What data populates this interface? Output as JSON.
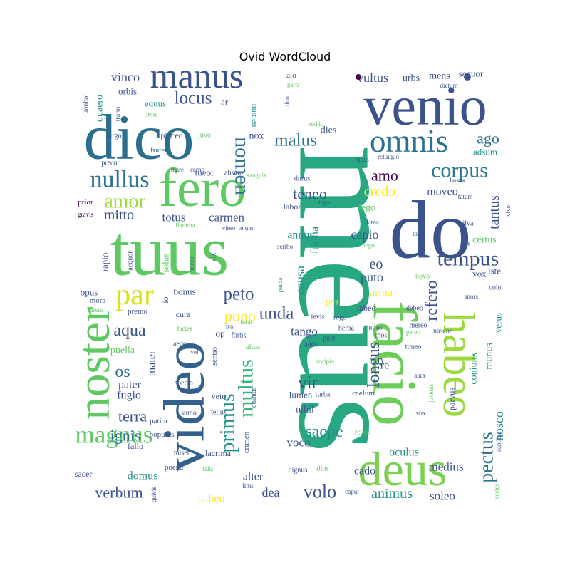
{
  "chart_data": {
    "type": "wordcloud",
    "title": "Ovid WordCloud",
    "colormap": [
      "#440154",
      "#3b528b",
      "#21918c",
      "#5ec962",
      "#fde725"
    ],
    "words": [
      {
        "text": "meus",
        "color": "#27a882",
        "rotate": 90
      },
      {
        "text": "venio",
        "color": "#3b528b",
        "rotate": 0
      },
      {
        "text": "dico",
        "color": "#2c6e8e",
        "rotate": 0
      },
      {
        "text": "tuus",
        "color": "#5ec962",
        "rotate": 0
      },
      {
        "text": "do",
        "color": "#3b528b",
        "rotate": 0
      },
      {
        "text": "facio",
        "color": "#6cce59",
        "rotate": 90
      },
      {
        "text": "video",
        "color": "#34608d",
        "rotate": 270
      },
      {
        "text": "fero",
        "color": "#5ec962",
        "rotate": 0
      },
      {
        "text": "habeo",
        "color": "#9bd93c",
        "rotate": 90
      },
      {
        "text": "noster",
        "color": "#5ec962",
        "rotate": 270
      },
      {
        "text": "deus",
        "color": "#7ad151",
        "rotate": 0
      },
      {
        "text": "manus",
        "color": "#3b528b",
        "rotate": 0
      },
      {
        "text": "omnis",
        "color": "#2c728e",
        "rotate": 0
      },
      {
        "text": "magnus",
        "color": "#5ec962",
        "rotate": 0
      },
      {
        "text": "par",
        "color": "#d8e219",
        "rotate": 0
      },
      {
        "text": "nullus",
        "color": "#2c728e",
        "rotate": 0
      },
      {
        "text": "corpus",
        "color": "#2a788e",
        "rotate": 0
      },
      {
        "text": "amor",
        "color": "#a0da39",
        "rotate": 0
      },
      {
        "text": "locus",
        "color": "#3b528b",
        "rotate": 0
      },
      {
        "text": "multus",
        "color": "#35b779",
        "rotate": 270
      },
      {
        "text": "primus",
        "color": "#21918c",
        "rotate": 270
      },
      {
        "text": "nomen",
        "color": "#2c728e",
        "rotate": 90
      },
      {
        "text": "malus",
        "color": "#2c728e",
        "rotate": 0
      },
      {
        "text": "tempus",
        "color": "#3b528b",
        "rotate": 0
      },
      {
        "text": "pectus",
        "color": "#2c728e",
        "rotate": 270
      },
      {
        "text": "volo",
        "color": "#3b528b",
        "rotate": 0
      },
      {
        "text": "verbum",
        "color": "#3b528b",
        "rotate": 0
      },
      {
        "text": "terra",
        "color": "#3b528b",
        "rotate": 0
      },
      {
        "text": "peto",
        "color": "#3b528b",
        "rotate": 0
      },
      {
        "text": "unda",
        "color": "#3b528b",
        "rotate": 0
      },
      {
        "text": "vir",
        "color": "#3b528b",
        "rotate": 0
      },
      {
        "text": "longus",
        "color": "#3b528b",
        "rotate": 270
      },
      {
        "text": "aqua",
        "color": "#3b528b",
        "rotate": 0
      },
      {
        "text": "pono",
        "color": "#fde725",
        "rotate": 0
      },
      {
        "text": "refero",
        "color": "#3b528b",
        "rotate": 270
      },
      {
        "text": "saepe",
        "color": "#21918c",
        "rotate": 0
      },
      {
        "text": "os",
        "color": "#2c728e",
        "rotate": 0
      },
      {
        "text": "ignis",
        "color": "#2c728e",
        "rotate": 0
      },
      {
        "text": "mitto",
        "color": "#3b528b",
        "rotate": 0
      },
      {
        "text": "teneo",
        "color": "#3b528b",
        "rotate": 0
      },
      {
        "text": "vultus",
        "color": "#3b528b",
        "rotate": 0
      },
      {
        "text": "vinco",
        "color": "#3b528b",
        "rotate": 0
      },
      {
        "text": "amo",
        "color": "#440154",
        "rotate": 0
      },
      {
        "text": "credo",
        "color": "#fde725",
        "rotate": 0
      },
      {
        "text": "ago",
        "color": "#2c728e",
        "rotate": 0
      },
      {
        "text": "tantus",
        "color": "#3b528b",
        "rotate": 270
      },
      {
        "text": "eo",
        "color": "#3b528b",
        "rotate": 0
      },
      {
        "text": "tenuis",
        "color": "#3b528b",
        "rotate": 0
      },
      {
        "text": "totus",
        "color": "#3b528b",
        "rotate": 0
      },
      {
        "text": "carmen",
        "color": "#3b528b",
        "rotate": 0
      },
      {
        "text": "annus",
        "color": "#21918c",
        "rotate": 0
      },
      {
        "text": "capio",
        "color": "#3b528b",
        "rotate": 0
      },
      {
        "text": "causa",
        "color": "#21918c",
        "rotate": 270
      },
      {
        "text": "forma",
        "color": "#21918c",
        "rotate": 270
      },
      {
        "text": "puto",
        "color": "#3b528b",
        "rotate": 0
      },
      {
        "text": "arma",
        "color": "#fde725",
        "rotate": 0
      },
      {
        "text": "tango",
        "color": "#3b528b",
        "rotate": 0
      },
      {
        "text": "nosco",
        "color": "#21918c",
        "rotate": 270
      },
      {
        "text": "animus",
        "color": "#21918c",
        "rotate": 0
      },
      {
        "text": "soleo",
        "color": "#3b528b",
        "rotate": 0
      },
      {
        "text": "dea",
        "color": "#3b528b",
        "rotate": 0
      },
      {
        "text": "oculus",
        "color": "#21918c",
        "rotate": 0
      },
      {
        "text": "medius",
        "color": "#3b528b",
        "rotate": 0
      },
      {
        "text": "cado",
        "color": "#3b528b",
        "rotate": 0
      },
      {
        "text": "alter",
        "color": "#3b528b",
        "rotate": 0
      },
      {
        "text": "domus",
        "color": "#21918c",
        "rotate": 0
      },
      {
        "text": "subeo",
        "color": "#fde725",
        "rotate": 0
      },
      {
        "text": "voco",
        "color": "#3b528b",
        "rotate": 0
      },
      {
        "text": "mater",
        "color": "#3b528b",
        "rotate": 270
      },
      {
        "text": "pater",
        "color": "#3b528b",
        "rotate": 0
      },
      {
        "text": "fugio",
        "color": "#3b528b",
        "rotate": 0
      },
      {
        "text": "puella",
        "color": "#5ec962",
        "rotate": 0
      },
      {
        "text": "moveo",
        "color": "#3b528b",
        "rotate": 0
      },
      {
        "text": "lego",
        "color": "#5ec962",
        "rotate": 0
      },
      {
        "text": "certus",
        "color": "#5ec962",
        "rotate": 0
      },
      {
        "text": "adsum",
        "color": "#21918c",
        "rotate": 0
      },
      {
        "text": "sequor",
        "color": "#3b528b",
        "rotate": 0
      },
      {
        "text": "mens",
        "color": "#3b528b",
        "rotate": 0
      },
      {
        "text": "urbs",
        "color": "#3b528b",
        "rotate": 0
      },
      {
        "text": "dies",
        "color": "#3b528b",
        "rotate": 0
      },
      {
        "text": "nox",
        "color": "#3b528b",
        "rotate": 0
      },
      {
        "text": "equus",
        "color": "#21918c",
        "rotate": 0
      },
      {
        "text": "orbis",
        "color": "#3b528b",
        "rotate": 0
      },
      {
        "text": "quaero",
        "color": "#21918c",
        "rotate": 270
      },
      {
        "text": "tueor",
        "color": "#3b528b",
        "rotate": 0
      },
      {
        "text": "ar",
        "color": "#3b528b",
        "rotate": 0
      },
      {
        "text": "numen",
        "color": "#21918c",
        "rotate": 90
      },
      {
        "text": "placeo",
        "color": "#3b528b",
        "rotate": 0
      },
      {
        "text": "juvo",
        "color": "#5ec962",
        "rotate": 0
      },
      {
        "text": "frater",
        "color": "#3b528b",
        "rotate": 0
      },
      {
        "text": "precor",
        "color": "#3b528b",
        "rotate": 0
      },
      {
        "text": "virgo",
        "color": "#3b528b",
        "rotate": 0
      },
      {
        "text": "traho",
        "color": "#3b528b",
        "rotate": 270
      },
      {
        "text": "loquor",
        "color": "#3b528b",
        "rotate": 90
      },
      {
        "text": "bene",
        "color": "#5ec962",
        "rotate": 0
      },
      {
        "text": "prior",
        "color": "#440154",
        "rotate": 0
      },
      {
        "text": "gravis",
        "color": "#440154",
        "rotate": 0
      },
      {
        "text": "flamma",
        "color": "#5ec962",
        "rotate": 0
      },
      {
        "text": "rapio",
        "color": "#3b528b",
        "rotate": 270
      },
      {
        "text": "aequor",
        "color": "#3b528b",
        "rotate": 270
      },
      {
        "text": "solus",
        "color": "#5ec962",
        "rotate": 270
      },
      {
        "text": "nocco",
        "color": "#3b528b",
        "rotate": 270
      },
      {
        "text": "vix",
        "color": "#3b528b",
        "rotate": 270
      },
      {
        "text": "opus",
        "color": "#3b528b",
        "rotate": 0
      },
      {
        "text": "mora",
        "color": "#3b528b",
        "rotate": 0
      },
      {
        "text": "parens",
        "color": "#5ec962",
        "rotate": 0
      },
      {
        "text": "bonus",
        "color": "#3b528b",
        "rotate": 0
      },
      {
        "text": "premo",
        "color": "#3b528b",
        "rotate": 0
      },
      {
        "text": "io",
        "color": "#3b528b",
        "rotate": 270
      },
      {
        "text": "cura",
        "color": "#3b528b",
        "rotate": 0
      },
      {
        "text": "facies",
        "color": "#5ec962",
        "rotate": 0
      },
      {
        "text": "laedo",
        "color": "#3b528b",
        "rotate": 0
      },
      {
        "text": "op",
        "color": "#3b528b",
        "rotate": 0
      },
      {
        "text": "fortis",
        "color": "#3b528b",
        "rotate": 0
      },
      {
        "text": "ira",
        "color": "#3b528b",
        "rotate": 0
      },
      {
        "text": "ferus",
        "color": "#5ec962",
        "rotate": 0
      },
      {
        "text": "altus",
        "color": "#5ec962",
        "rotate": 0
      },
      {
        "text": "sentio",
        "color": "#3b528b",
        "rotate": 270
      },
      {
        "text": "vel",
        "color": "#3b528b",
        "rotate": 0
      },
      {
        "text": "specto",
        "color": "#3b528b",
        "rotate": 0
      },
      {
        "text": "sumo",
        "color": "#3b528b",
        "rotate": 0
      },
      {
        "text": "veto",
        "color": "#3b528b",
        "rotate": 0
      },
      {
        "text": "tellus",
        "color": "#3b528b",
        "rotate": 0
      },
      {
        "text": "patior",
        "color": "#3b528b",
        "rotate": 0
      },
      {
        "text": "populus",
        "color": "#3b528b",
        "rotate": 0
      },
      {
        "text": "fallo",
        "color": "#3b528b",
        "rotate": 0
      },
      {
        "text": "miser",
        "color": "#3b528b",
        "rotate": 0
      },
      {
        "text": "poena",
        "color": "#3b528b",
        "rotate": 0
      },
      {
        "text": "sacer",
        "color": "#3b528b",
        "rotate": 0
      },
      {
        "text": "lacrima",
        "color": "#3b528b",
        "rotate": 0
      },
      {
        "text": "crimen",
        "color": "#3b528b",
        "rotate": 270
      },
      {
        "text": "talis",
        "color": "#5ec962",
        "rotate": 0
      },
      {
        "text": "quivis",
        "color": "#3b528b",
        "rotate": 270
      },
      {
        "text": "litus",
        "color": "#3b528b",
        "rotate": 0
      },
      {
        "text": "quantus",
        "color": "#3b528b",
        "rotate": 270
      },
      {
        "text": "nihil",
        "color": "#3b528b",
        "rotate": 0
      },
      {
        "text": "lumen",
        "color": "#3b528b",
        "rotate": 0
      },
      {
        "text": "turba",
        "color": "#3b528b",
        "rotate": 0
      },
      {
        "text": "re",
        "color": "#3b528b",
        "rotate": 0
      },
      {
        "text": "caelum",
        "color": "#3b528b",
        "rotate": 0
      },
      {
        "text": "juvenis",
        "color": "#5ec962",
        "rotate": 270
      },
      {
        "text": "sto",
        "color": "#3b528b",
        "rotate": 0
      },
      {
        "text": "parvus",
        "color": "#3b528b",
        "rotate": 270
      },
      {
        "text": "coniunx",
        "color": "#21918c",
        "rotate": 270
      },
      {
        "text": "munus",
        "color": "#21918c",
        "rotate": 270
      },
      {
        "text": "verus",
        "color": "#21918c",
        "rotate": 270
      },
      {
        "text": "capillus",
        "color": "#3b528b",
        "rotate": 270
      },
      {
        "text": "vester",
        "color": "#5ec962",
        "rotate": 270
      },
      {
        "text": "caput",
        "color": "#3b528b",
        "rotate": 0
      },
      {
        "text": "redeo",
        "color": "#5ec962",
        "rotate": 0
      },
      {
        "text": "dignus",
        "color": "#3b528b",
        "rotate": 0
      },
      {
        "text": "alius",
        "color": "#5ec962",
        "rotate": 0
      },
      {
        "text": "accipio",
        "color": "#5ec962",
        "rotate": 0
      },
      {
        "text": "addo",
        "color": "#3b528b",
        "rotate": 0
      },
      {
        "text": "herba",
        "color": "#3b528b",
        "rotate": 0
      },
      {
        "text": "ullus",
        "color": "#3b528b",
        "rotate": 0
      },
      {
        "text": "mos",
        "color": "#3b528b",
        "rotate": 0
      },
      {
        "text": "mereo",
        "color": "#3b528b",
        "rotate": 0
      },
      {
        "text": "pereo",
        "color": "#5ec962",
        "rotate": 0
      },
      {
        "text": "nascor",
        "color": "#3b528b",
        "rotate": 0
      },
      {
        "text": "timeo",
        "color": "#3b528b",
        "rotate": 0
      },
      {
        "text": "aura",
        "color": "#3b528b",
        "rotate": 0
      },
      {
        "text": "iubeo",
        "color": "#3b528b",
        "rotate": 0
      },
      {
        "text": "debeo",
        "color": "#3b528b",
        "rotate": 0
      },
      {
        "text": "puer",
        "color": "#3b528b",
        "rotate": 0
      },
      {
        "text": "rogo",
        "color": "#3b528b",
        "rotate": 0
      },
      {
        "text": "levis",
        "color": "#3b528b",
        "rotate": 0
      },
      {
        "text": "pes",
        "color": "#fde725",
        "rotate": 0
      },
      {
        "text": "patria",
        "color": "#21918c",
        "rotate": 270
      },
      {
        "text": "novo",
        "color": "#5ec962",
        "rotate": 0
      },
      {
        "text": "mors",
        "color": "#3b528b",
        "rotate": 0
      },
      {
        "text": "colo",
        "color": "#3b528b",
        "rotate": 0
      },
      {
        "text": "vox",
        "color": "#3b528b",
        "rotate": 0
      },
      {
        "text": "iste",
        "color": "#3b528b",
        "rotate": 0
      },
      {
        "text": "via",
        "color": "#3b528b",
        "rotate": 0
      },
      {
        "text": "silva",
        "color": "#3b528b",
        "rotate": 0
      },
      {
        "text": "soror",
        "color": "#3b528b",
        "rotate": 0
      },
      {
        "text": "duco",
        "color": "#3b528b",
        "rotate": 0
      },
      {
        "text": "nego",
        "color": "#5ec962",
        "rotate": 0
      },
      {
        "text": "lateo",
        "color": "#3b528b",
        "rotate": 0
      },
      {
        "text": "vivo",
        "color": "#3b528b",
        "rotate": 270
      },
      {
        "text": "fatum",
        "color": "#3b528b",
        "rotate": 0
      },
      {
        "text": "hostis",
        "color": "#3b528b",
        "rotate": 0
      },
      {
        "text": "fides",
        "color": "#3b528b",
        "rotate": 0
      },
      {
        "text": "relinquo",
        "color": "#3b528b",
        "rotate": 0
      },
      {
        "text": "durus",
        "color": "#3b528b",
        "rotate": 0
      },
      {
        "text": "labor",
        "color": "#3b528b",
        "rotate": 0
      },
      {
        "text": "tego",
        "color": "#3b528b",
        "rotate": 0
      },
      {
        "text": "scribo",
        "color": "#3b528b",
        "rotate": 0
      },
      {
        "text": "duo",
        "color": "#3b528b",
        "rotate": 270
      },
      {
        "text": "reddo",
        "color": "#5ec962",
        "rotate": 0
      },
      {
        "text": "aio",
        "color": "#3b528b",
        "rotate": 0
      },
      {
        "text": "paro",
        "color": "#5ec962",
        "rotate": 0
      },
      {
        "text": "dictum",
        "color": "#3b528b",
        "rotate": 0
      },
      {
        "text": "vireo",
        "color": "#3b528b",
        "rotate": 0
      },
      {
        "text": "telum",
        "color": "#3b528b",
        "rotate": 0
      },
      {
        "text": "mare",
        "color": "#3b528b",
        "rotate": 0
      },
      {
        "text": "cerno",
        "color": "#3b528b",
        "rotate": 0
      },
      {
        "text": "absum",
        "color": "#3b528b",
        "rotate": 0
      },
      {
        "text": "sanguis",
        "color": "#5ec962",
        "rotate": 0
      }
    ]
  }
}
